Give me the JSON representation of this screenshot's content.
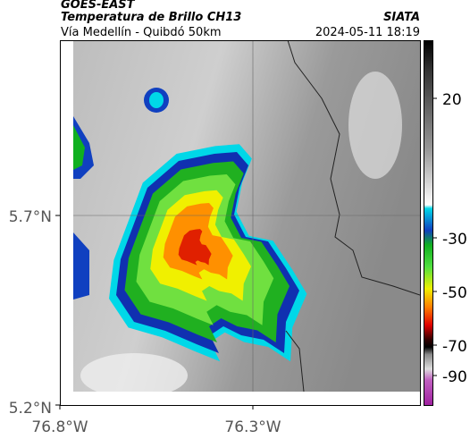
{
  "header": {
    "product": "GOES-EAST",
    "title": "Temperatura de Brillo CH13",
    "agency": "SIATA",
    "location": "Vía Medellín - Quibdó 50km",
    "datetime": "2024-05-11 18:19"
  },
  "axes": {
    "y_labels": [
      "5.7°N",
      "5.2°N"
    ],
    "x_labels": [
      "76.8°W",
      "76.3°W"
    ]
  },
  "colorbar": {
    "tick_labels": [
      "20",
      "-30",
      "-50",
      "-70",
      "-90"
    ]
  }
}
